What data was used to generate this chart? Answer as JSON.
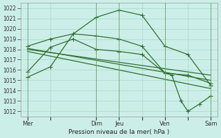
{
  "title": "",
  "xlabel": "Pression niveau de la mer( hPa )",
  "ylabel": "",
  "bg_color": "#cceee8",
  "grid_color": "#aaddcc",
  "line_color": "#2d6e2d",
  "ylim": [
    1011.5,
    1022.5
  ],
  "yticks": [
    1012,
    1013,
    1014,
    1015,
    1016,
    1017,
    1018,
    1019,
    1020,
    1021,
    1022
  ],
  "xtick_labels": [
    "Mer",
    "",
    "Dim",
    "Jeu",
    "",
    "Ven",
    "",
    "Sam"
  ],
  "xtick_positions": [
    0,
    1,
    3,
    4,
    5,
    6,
    7,
    8
  ],
  "vlines": [
    0,
    3,
    4,
    6,
    8
  ],
  "series": [
    {
      "x": [
        0,
        1,
        2,
        3,
        4,
        5,
        6,
        7,
        8
      ],
      "y": [
        1015.3,
        1016.3,
        1019.5,
        1021.1,
        1021.8,
        1021.3,
        1018.3,
        1017.5,
        1014.5
      ],
      "marker": "+"
    },
    {
      "x": [
        0,
        1,
        2,
        3,
        4,
        5,
        6,
        7,
        8
      ],
      "y": [
        1018.3,
        1019.0,
        1019.5,
        1019.3,
        1019.0,
        1018.3,
        1015.7,
        1015.5,
        1014.7
      ],
      "marker": "+"
    },
    {
      "x": [
        0,
        8
      ],
      "y": [
        1018.0,
        1015.5
      ],
      "marker": null
    },
    {
      "x": [
        0,
        8
      ],
      "y": [
        1018.1,
        1015.0
      ],
      "marker": null
    },
    {
      "x": [
        0,
        8
      ],
      "y": [
        1017.8,
        1014.2
      ],
      "marker": null
    },
    {
      "x": [
        0,
        1,
        2,
        3,
        4,
        5,
        6,
        6.3,
        6.7,
        7,
        7.5,
        8
      ],
      "y": [
        1015.8,
        1018.2,
        1019.0,
        1018.0,
        1017.8,
        1017.5,
        1015.7,
        1015.5,
        1013.0,
        1012.0,
        1012.7,
        1013.5
      ],
      "marker": "+"
    }
  ]
}
